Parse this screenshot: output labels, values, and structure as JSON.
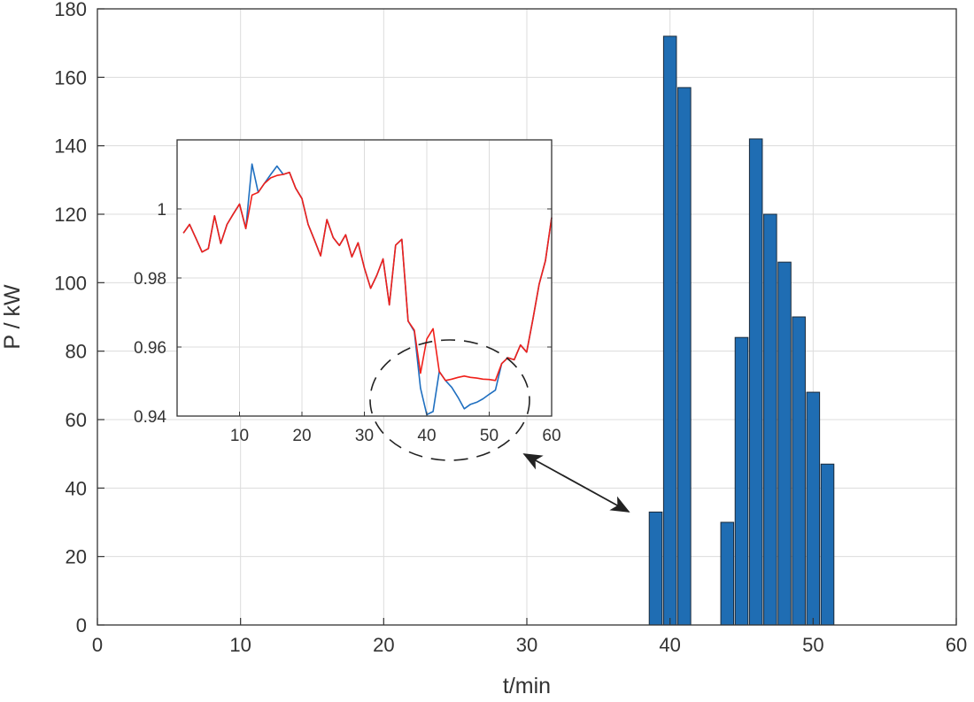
{
  "chart_data": [
    {
      "type": "bar",
      "xlabel": "t/min",
      "ylabel": "P / kW",
      "xlim": [
        0,
        60
      ],
      "ylim": [
        0,
        180
      ],
      "xticks": [
        0,
        10,
        20,
        30,
        40,
        50,
        60
      ],
      "yticks": [
        0,
        20,
        40,
        60,
        80,
        100,
        120,
        140,
        160,
        180
      ],
      "grid": true,
      "bar_color": "#1f6db3",
      "x": [
        39,
        40,
        41,
        44,
        45,
        46,
        47,
        48,
        49,
        50,
        51
      ],
      "values": [
        33,
        172,
        157,
        30,
        84,
        142,
        120,
        106,
        90,
        68,
        47
      ]
    },
    {
      "type": "line",
      "inset": true,
      "xlim": [
        0,
        60
      ],
      "ylim": [
        0.94,
        1.02
      ],
      "xticks": [
        10,
        20,
        30,
        40,
        50,
        60
      ],
      "yticks": [
        0.94,
        0.96,
        0.98,
        1
      ],
      "ytick_labels": [
        "0.94",
        "0.96",
        "0.98",
        "1"
      ],
      "grid": true,
      "series": [
        {
          "name": "blue",
          "color": "#1f6fc0",
          "x": [
            1,
            2,
            3,
            4,
            5,
            6,
            7,
            8,
            9,
            10,
            11,
            12,
            13,
            14,
            15,
            16,
            17,
            18,
            19,
            20,
            21,
            22,
            23,
            24,
            25,
            26,
            27,
            28,
            29,
            30,
            31,
            32,
            33,
            34,
            35,
            36,
            37,
            38,
            39,
            40,
            41,
            42,
            43,
            44,
            45,
            46,
            47,
            48,
            49,
            50,
            51,
            52,
            53,
            54,
            55,
            56,
            57,
            58,
            59,
            60
          ],
          "values": [
            0.993,
            0.9955,
            0.9915,
            0.9875,
            0.9885,
            0.998,
            0.99,
            0.9955,
            0.9985,
            1.0014,
            0.9943,
            1.013,
            1.0048,
            1.0074,
            1.01,
            1.0124,
            1.01,
            1.0106,
            1.006,
            1.003,
            0.9955,
            0.991,
            0.9864,
            0.9969,
            0.9917,
            0.9894,
            0.9925,
            0.9861,
            0.9902,
            0.9829,
            0.977,
            0.9808,
            0.9855,
            0.9722,
            0.9895,
            0.9912,
            0.9675,
            0.9645,
            0.9481,
            0.9404,
            0.9413,
            0.9529,
            0.9503,
            0.9483,
            0.9454,
            0.9421,
            0.9434,
            0.944,
            0.945,
            0.9463,
            0.9475,
            0.9552,
            0.9569,
            0.9563,
            0.9606,
            0.9585,
            0.968,
            0.9782,
            0.985,
            0.9975
          ]
        },
        {
          "name": "red",
          "color": "#f0201a",
          "x": [
            1,
            2,
            3,
            4,
            5,
            6,
            7,
            8,
            9,
            10,
            11,
            12,
            13,
            14,
            15,
            16,
            17,
            18,
            19,
            20,
            21,
            22,
            23,
            24,
            25,
            26,
            27,
            28,
            29,
            30,
            31,
            32,
            33,
            34,
            35,
            36,
            37,
            38,
            39,
            40,
            41,
            42,
            43,
            44,
            45,
            46,
            47,
            48,
            49,
            50,
            51,
            52,
            53,
            54,
            55,
            56,
            57,
            58,
            59,
            60
          ],
          "values": [
            0.993,
            0.9955,
            0.9915,
            0.9875,
            0.9885,
            0.998,
            0.99,
            0.9955,
            0.9985,
            1.0014,
            0.9943,
            1.004,
            1.0048,
            1.0074,
            1.009,
            1.0097,
            1.01,
            1.0106,
            1.006,
            1.003,
            0.9955,
            0.991,
            0.9864,
            0.9969,
            0.9917,
            0.9894,
            0.9925,
            0.9861,
            0.9902,
            0.9829,
            0.977,
            0.9808,
            0.9855,
            0.9722,
            0.9895,
            0.9912,
            0.9675,
            0.9649,
            0.9524,
            0.9623,
            0.9653,
            0.9529,
            0.9503,
            0.9507,
            0.9512,
            0.9516,
            0.9512,
            0.951,
            0.9507,
            0.9506,
            0.9503,
            0.9552,
            0.9569,
            0.9563,
            0.9606,
            0.9585,
            0.968,
            0.9782,
            0.985,
            0.9975
          ]
        }
      ]
    }
  ]
}
